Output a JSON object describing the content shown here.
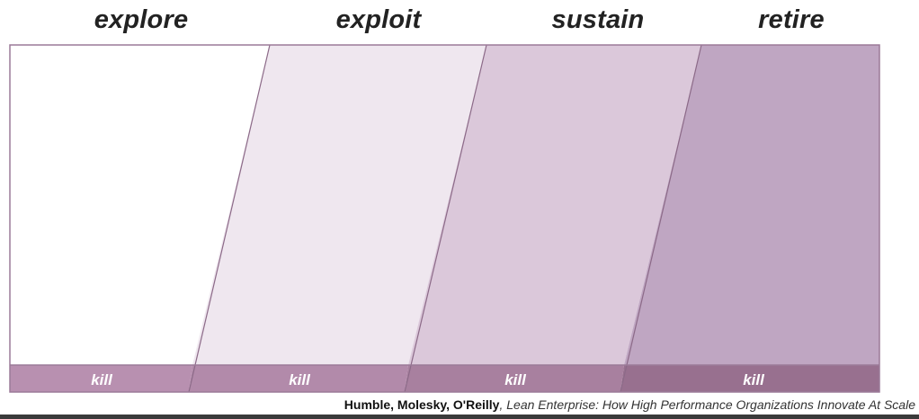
{
  "phases": [
    {
      "label": "explore",
      "kill_label": "kill",
      "fill": "#ffffff",
      "kill_fill": "#b890b0"
    },
    {
      "label": "exploit",
      "kill_label": "kill",
      "fill": "#efe7ef",
      "kill_fill": "#b28aaa"
    },
    {
      "label": "sustain",
      "kill_label": "kill",
      "fill": "#dbc8da",
      "kill_fill": "#a8809f"
    },
    {
      "label": "retire",
      "kill_label": "kill",
      "fill": "#bfa6c2",
      "kill_fill": "#98708f"
    }
  ],
  "colors": {
    "border": "#9b7a98",
    "divider": "#8c6a88",
    "title": "#222222"
  },
  "citation": {
    "authors": "Humble, Molesky, O'Reilly",
    "separator": ", ",
    "work": "Lean Enterprise: How High Performance Organizations Innovate At Scale"
  }
}
